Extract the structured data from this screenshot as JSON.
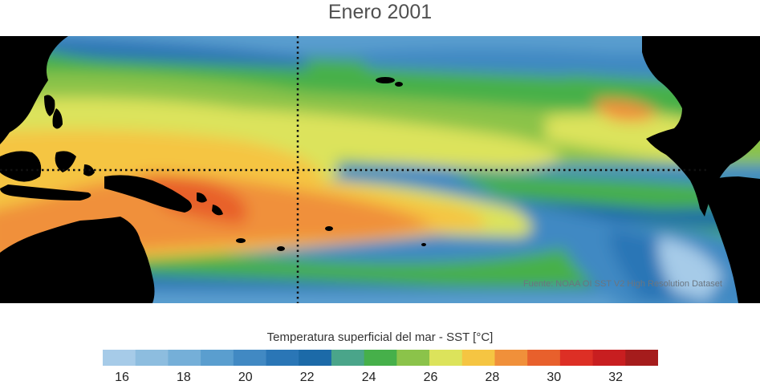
{
  "title": "Enero 2001",
  "source": "Fuente: NOAA OI SST V2 High Resolution Dataset",
  "colorbar": {
    "title": "Temperatura superficial del mar - SST  [°C]",
    "ticks": [
      "16",
      "18",
      "20",
      "22",
      "24",
      "26",
      "28",
      "30",
      "32"
    ],
    "colors": [
      "#a6cbe8",
      "#8dbddf",
      "#75afd8",
      "#5a9ecf",
      "#4189c3",
      "#2a76b6",
      "#1c6aa8",
      "#4aa58a",
      "#46b04a",
      "#8bc34a",
      "#dce35b",
      "#f5c542",
      "#f0903a",
      "#e8602c",
      "#dd2f25",
      "#c81e20",
      "#a51c1c"
    ]
  },
  "map": {
    "land_color": "#000000",
    "reference_lines": [
      "dotted-equator",
      "dotted-meridian"
    ]
  }
}
